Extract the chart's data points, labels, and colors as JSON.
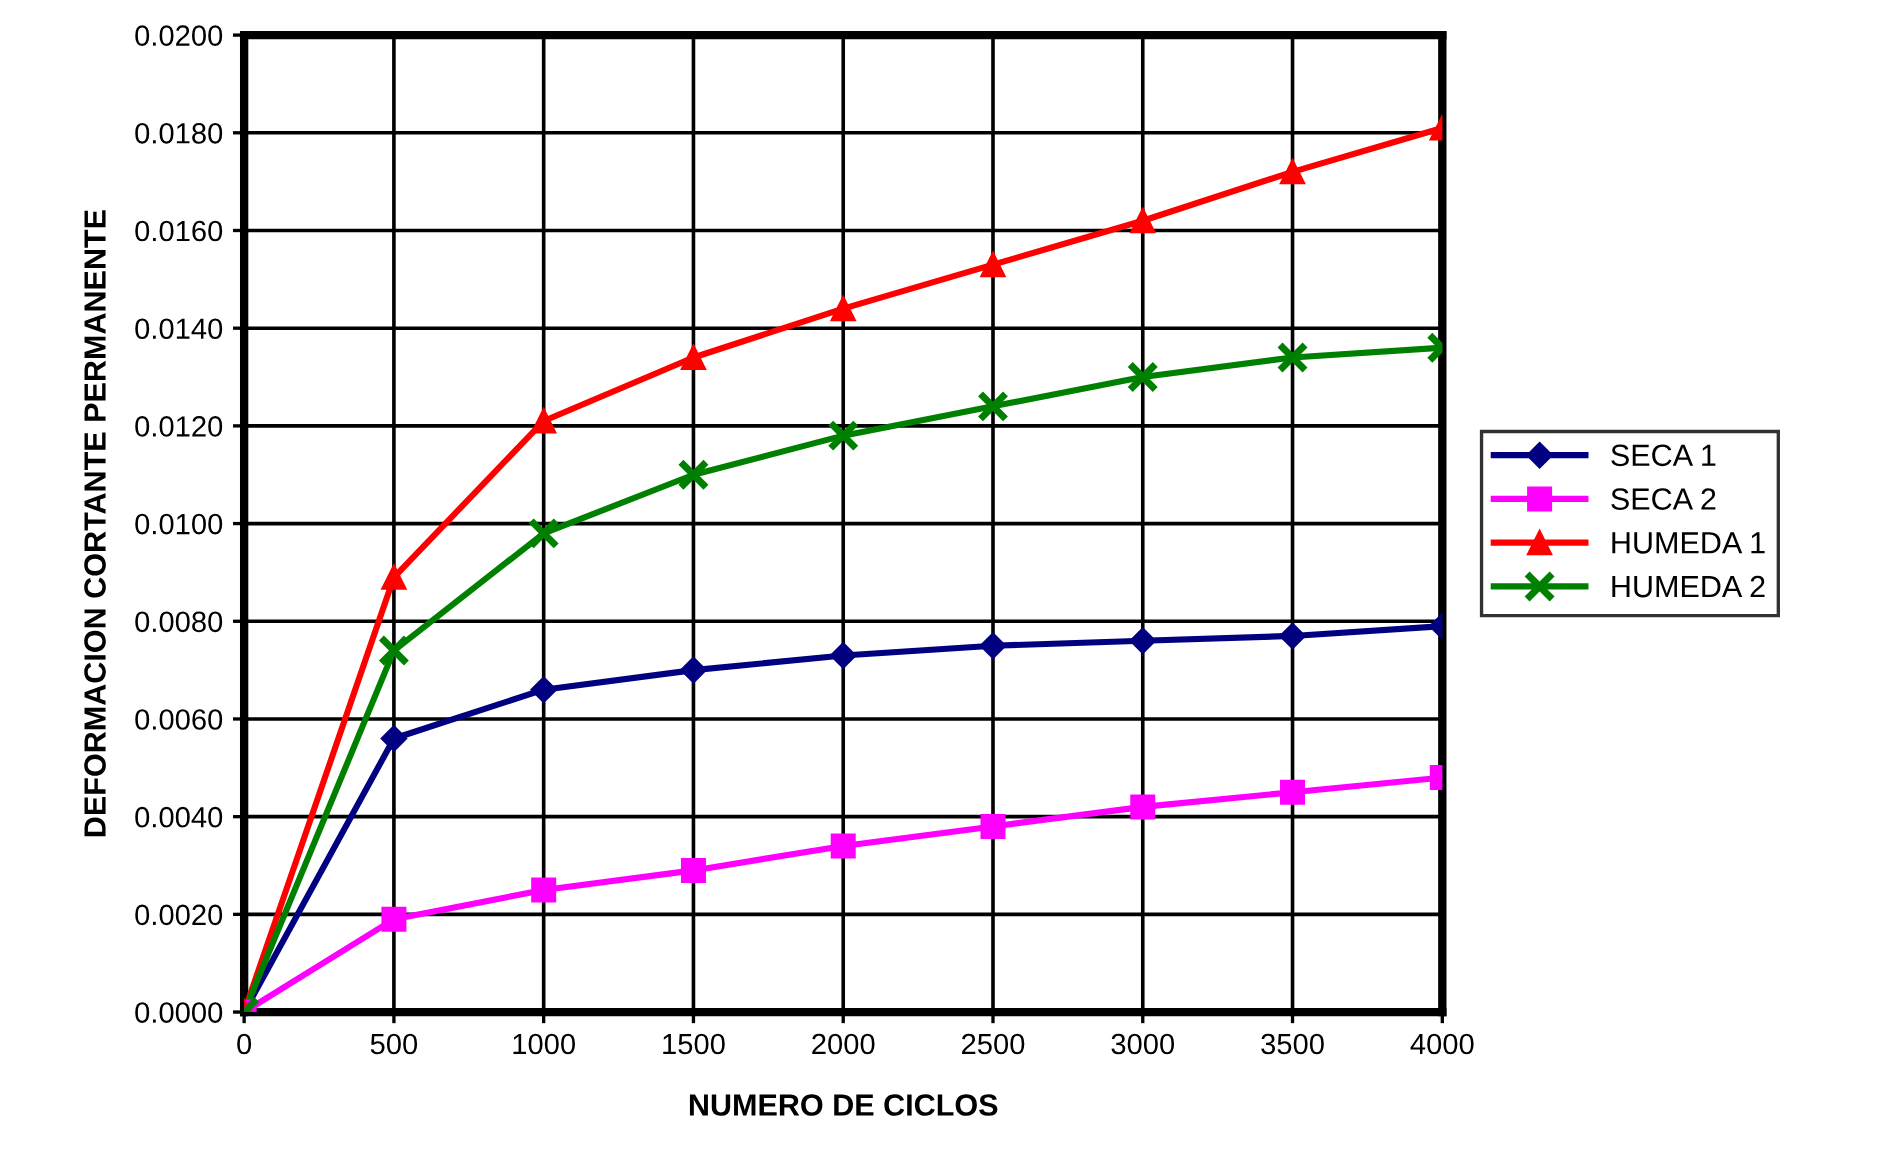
{
  "chart_data": {
    "type": "line",
    "xlabel": "NUMERO DE CICLOS",
    "ylabel": "DEFORMACION CORTANTE PERMANENTE",
    "x": [
      0,
      500,
      1000,
      1500,
      2000,
      2500,
      3000,
      3500,
      4000
    ],
    "series": [
      {
        "name": "SECA 1",
        "color": "#000080",
        "marker": "diamond",
        "values": [
          0,
          0.0056,
          0.0066,
          0.007,
          0.0073,
          0.0075,
          0.0076,
          0.0077,
          0.0079
        ]
      },
      {
        "name": "SECA 2",
        "color": "#ff00ff",
        "marker": "square",
        "values": [
          0,
          0.0019,
          0.0025,
          0.0029,
          0.0034,
          0.0038,
          0.0042,
          0.0045,
          0.0048
        ]
      },
      {
        "name": "HUMEDA 1",
        "color": "#ff0000",
        "marker": "triangle",
        "values": [
          0,
          0.0089,
          0.0121,
          0.0134,
          0.0144,
          0.0153,
          0.0162,
          0.0172,
          0.0181
        ]
      },
      {
        "name": "HUMEDA 2",
        "color": "#008000",
        "marker": "cross",
        "values": [
          0,
          0.0074,
          0.0098,
          0.011,
          0.0118,
          0.0124,
          0.013,
          0.0134,
          0.0136
        ]
      }
    ],
    "xlim": [
      0,
      4000
    ],
    "xticks": [
      0,
      500,
      1000,
      1500,
      2000,
      2500,
      3000,
      3500,
      4000
    ],
    "ylim": [
      0,
      0.02
    ],
    "yticks": [
      {
        "value": 0,
        "label": "0.0000"
      },
      {
        "value": 0.002,
        "label": "0.0020"
      },
      {
        "value": 0.004,
        "label": "0.0040"
      },
      {
        "value": 0.006,
        "label": "0.0060"
      },
      {
        "value": 0.008,
        "label": "0.0080"
      },
      {
        "value": 0.01,
        "label": "0.0100"
      },
      {
        "value": 0.012,
        "label": "0.0120"
      },
      {
        "value": 0.014,
        "label": "0.0140"
      },
      {
        "value": 0.016,
        "label": "0.0160"
      },
      {
        "value": 0.018,
        "label": "0.0180"
      },
      {
        "value": 0.02,
        "label": "0.0200"
      }
    ],
    "grid": true,
    "legend": "right",
    "line_style": "solid"
  }
}
